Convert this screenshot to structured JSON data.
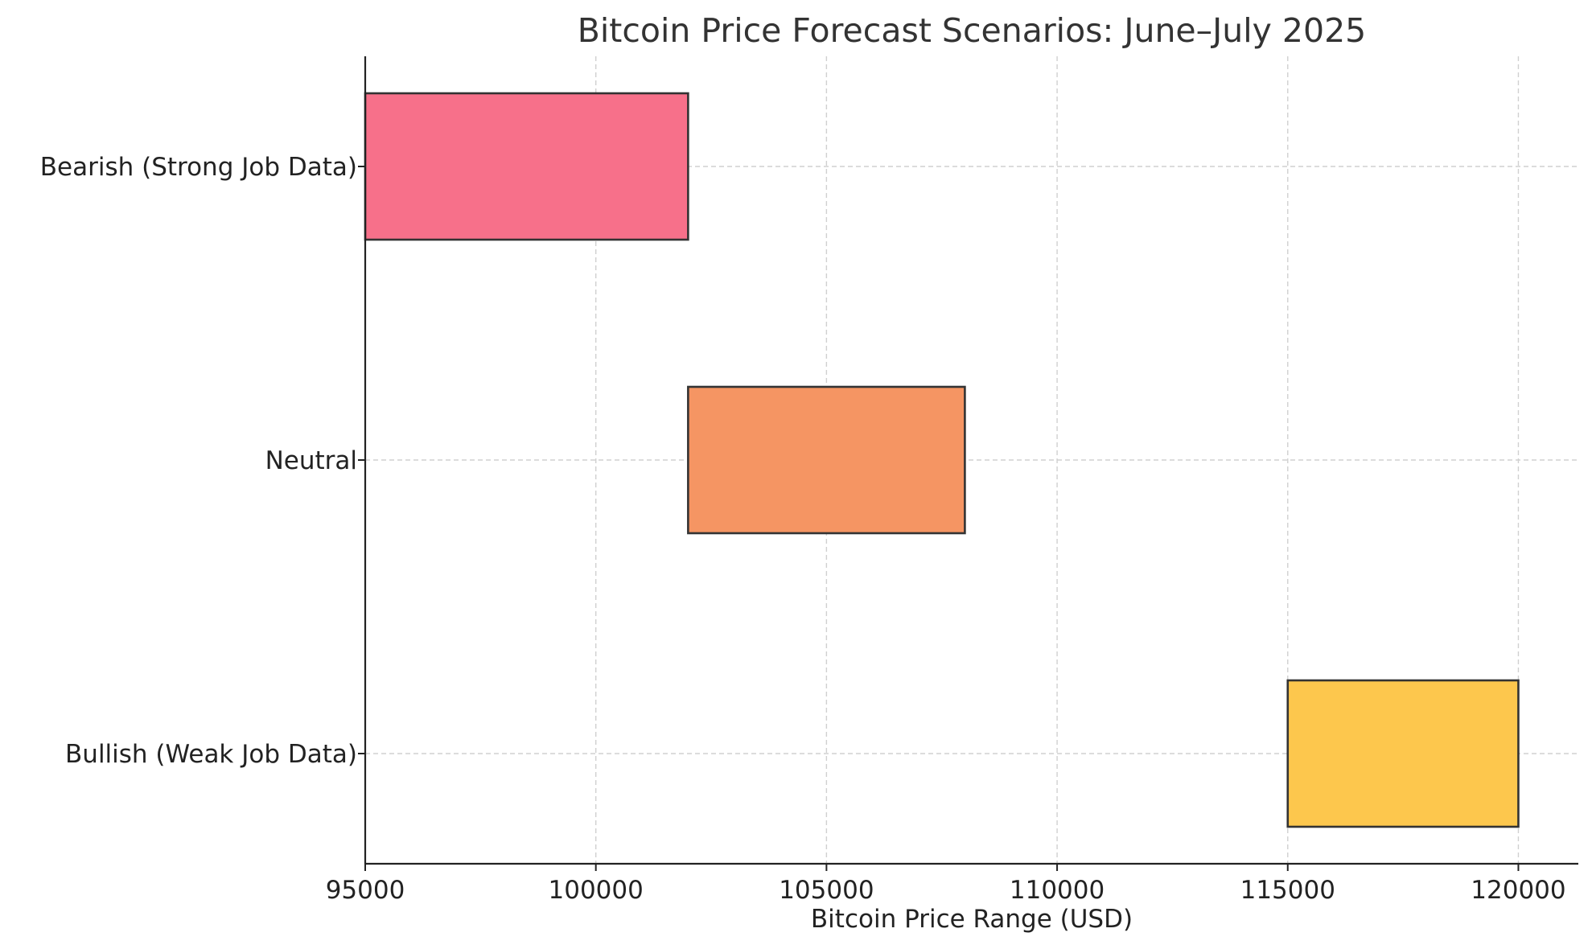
{
  "chart_data": {
    "type": "bar",
    "orientation": "horizontal",
    "title": "Bitcoin Price Forecast Scenarios: June–July 2025",
    "xlabel": "Bitcoin Price Range (USD)",
    "ylabel": "",
    "xlim": [
      95000,
      121300
    ],
    "xticks": [
      95000,
      100000,
      105000,
      110000,
      115000,
      120000
    ],
    "grid": true,
    "categories": [
      "Bearish (Strong Job Data)",
      "Neutral",
      "Bullish (Weak Job Data)"
    ],
    "ranges": [
      {
        "category": "Bearish (Strong Job Data)",
        "low": 95000,
        "high": 102000,
        "color": "#f7708a"
      },
      {
        "category": "Neutral",
        "low": 102000,
        "high": 108000,
        "color": "#f59563"
      },
      {
        "category": "Bullish (Weak Job Data)",
        "low": 115000,
        "high": 120000,
        "color": "#fdc74d"
      }
    ]
  }
}
